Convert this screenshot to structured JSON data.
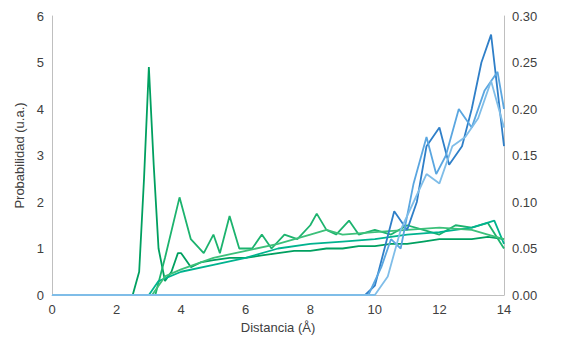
{
  "chart_data": {
    "type": "line",
    "x_label": "Distancia (Å)",
    "y_label": "Probabilidad (u.a.)",
    "xlim": [
      0,
      14
    ],
    "xticks": [
      0,
      2,
      4,
      6,
      8,
      10,
      12,
      14
    ],
    "ylim": [
      0,
      6
    ],
    "yticks": [
      0,
      1,
      2,
      3,
      4,
      5,
      6
    ],
    "y2lim": [
      0,
      0.3
    ],
    "y2ticks": [
      {
        "value": 0,
        "label": "0.00"
      },
      {
        "value": 0.05,
        "label": "0.05"
      },
      {
        "value": 0.1,
        "label": "0.10"
      },
      {
        "value": 0.15,
        "label": "0.15"
      },
      {
        "value": 0.2,
        "label": "0.20"
      },
      {
        "value": 0.25,
        "label": "0.25"
      },
      {
        "value": 0.3,
        "label": "0.30"
      }
    ],
    "grid": false,
    "series": [
      {
        "color": "#00a060",
        "x": [
          0,
          2.5,
          2.7,
          2.85,
          3.0,
          3.15,
          3.3,
          3.5,
          3.7,
          3.9,
          4.0,
          4.3,
          4.6,
          5,
          5.5,
          6,
          6.5,
          7,
          7.5,
          8,
          8.5,
          9,
          9.5,
          10,
          10.5,
          11,
          11.5,
          12,
          12.5,
          13,
          13.5,
          14
        ],
        "values": [
          0,
          0,
          0.5,
          2.5,
          4.9,
          2.8,
          1.0,
          0.3,
          0.5,
          0.9,
          0.9,
          0.6,
          0.7,
          0.75,
          0.8,
          0.8,
          0.85,
          0.9,
          0.95,
          0.95,
          1.0,
          1.0,
          1.05,
          1.05,
          1.1,
          1.1,
          1.15,
          1.2,
          1.2,
          1.2,
          1.25,
          1.2
        ]
      },
      {
        "color": "#1cb36e",
        "x": [
          0,
          3.2,
          3.5,
          3.95,
          4.3,
          4.7,
          5.0,
          5.2,
          5.5,
          5.8,
          6.2,
          6.5,
          6.8,
          7.2,
          7.6,
          8.0,
          8.2,
          8.5,
          8.8,
          9.2,
          9.5,
          10,
          10.5,
          11,
          11.5,
          12,
          12.5,
          13,
          13.5,
          14
        ],
        "values": [
          0,
          0,
          0.8,
          2.1,
          1.2,
          0.9,
          1.3,
          0.9,
          1.7,
          1.0,
          1.0,
          1.3,
          1.0,
          1.3,
          1.2,
          1.5,
          1.75,
          1.4,
          1.3,
          1.6,
          1.3,
          1.4,
          1.3,
          1.5,
          1.4,
          1.3,
          1.5,
          1.45,
          1.55,
          1.0
        ]
      },
      {
        "color": "#00b38f",
        "x": [
          0,
          3.0,
          3.3,
          4,
          5,
          6,
          7,
          8,
          9,
          10,
          11,
          12,
          13,
          13.7,
          14
        ],
        "values": [
          0,
          0,
          0.3,
          0.5,
          0.65,
          0.8,
          1.0,
          1.1,
          1.15,
          1.2,
          1.3,
          1.35,
          1.45,
          1.6,
          1.1
        ]
      },
      {
        "color": "#3cc07a",
        "x": [
          0,
          3.1,
          3.5,
          4,
          5,
          6,
          7,
          8,
          8.5,
          9,
          10,
          11,
          12,
          13,
          13.5,
          14
        ],
        "values": [
          0,
          0,
          0.4,
          0.55,
          0.8,
          0.95,
          1.1,
          1.3,
          1.4,
          1.3,
          1.35,
          1.4,
          1.45,
          1.4,
          1.3,
          1.2
        ]
      },
      {
        "color": "#2f7fc8",
        "axis": "y2",
        "x": [
          0,
          9.7,
          10,
          10.3,
          10.6,
          11,
          11.3,
          11.6,
          12,
          12.3,
          12.7,
          13,
          13.3,
          13.6,
          14
        ],
        "values": [
          0,
          0,
          0.01,
          0.05,
          0.09,
          0.07,
          0.1,
          0.16,
          0.18,
          0.14,
          0.16,
          0.2,
          0.25,
          0.28,
          0.16
        ]
      },
      {
        "color": "#5aa6e0",
        "axis": "y2",
        "x": [
          0,
          9.8,
          10.2,
          10.5,
          10.8,
          11.2,
          11.6,
          11.9,
          12.2,
          12.6,
          13,
          13.4,
          13.8,
          14
        ],
        "values": [
          0,
          0,
          0.03,
          0.06,
          0.05,
          0.12,
          0.17,
          0.13,
          0.15,
          0.2,
          0.18,
          0.22,
          0.24,
          0.2
        ]
      },
      {
        "color": "#7fbde8",
        "axis": "y2",
        "x": [
          0,
          10,
          10.4,
          10.8,
          11.2,
          11.6,
          12,
          12.4,
          12.8,
          13.2,
          13.6,
          14
        ],
        "values": [
          0,
          0,
          0.02,
          0.07,
          0.1,
          0.13,
          0.12,
          0.16,
          0.17,
          0.19,
          0.23,
          0.18
        ]
      }
    ]
  }
}
